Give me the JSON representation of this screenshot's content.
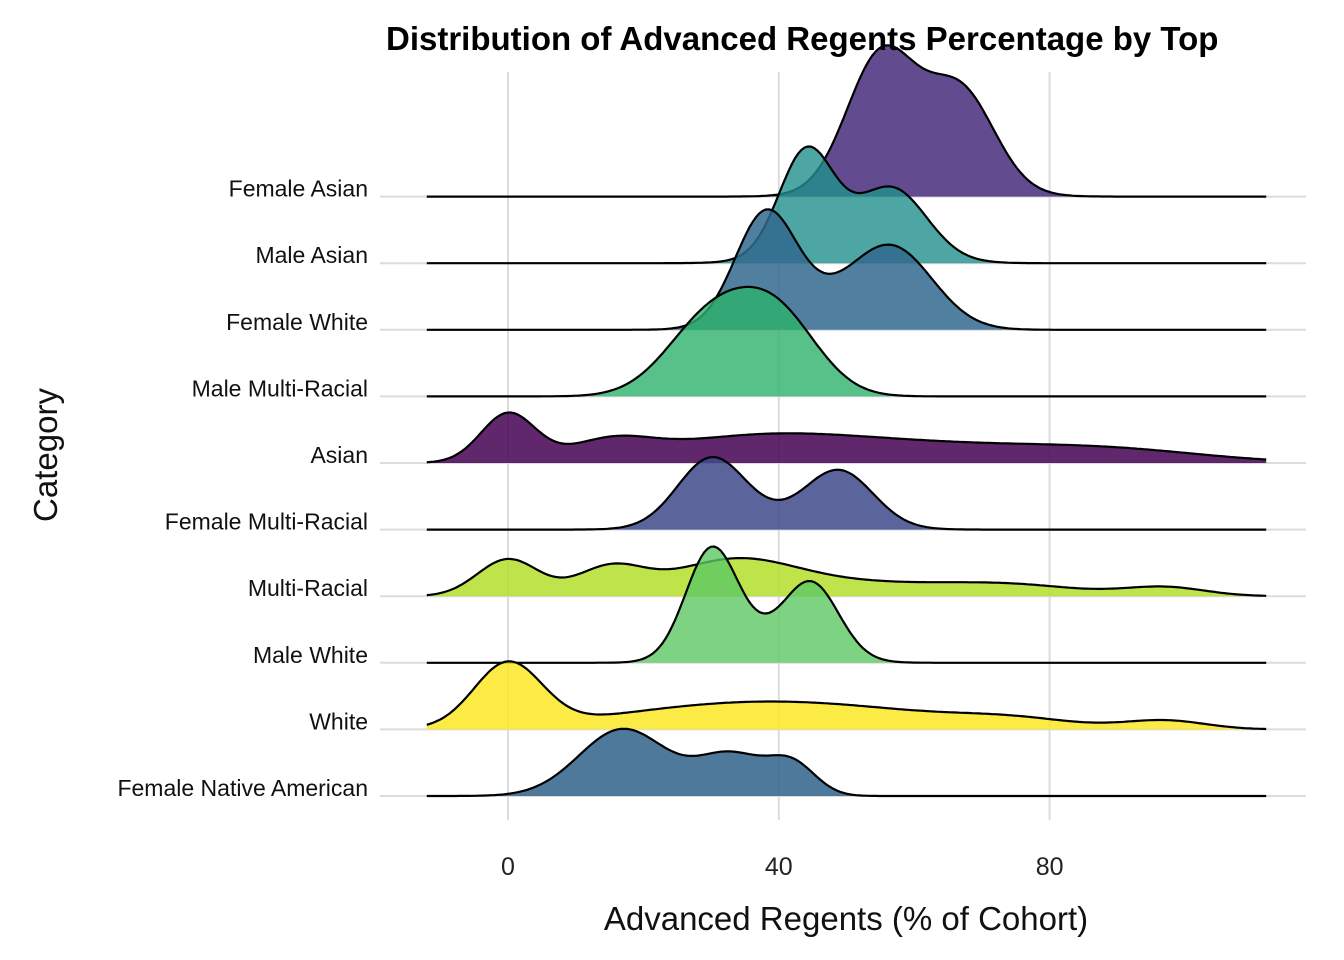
{
  "chart_data": {
    "type": "ridgeline",
    "title": "Distribution of Advanced Regents Percentage by Top",
    "xlabel": "Advanced Regents (% of Cohort)",
    "ylabel": "Category",
    "xlim": [
      -12,
      112
    ],
    "xticks": [
      0,
      40,
      80
    ],
    "grid": true,
    "series": [
      {
        "name": "Female Native American",
        "color": "#3B6A8F",
        "opacity": 0.9,
        "range": [
          -12,
          112
        ],
        "peaks": [
          [
            17,
            6.5,
            1.0
          ],
          [
            33,
            5,
            0.6
          ],
          [
            42,
            3.5,
            0.45
          ]
        ]
      },
      {
        "name": "White",
        "color": "#FDE725",
        "opacity": 0.85,
        "range": [
          -12,
          112
        ],
        "peaks": [
          [
            0,
            5,
            0.95
          ],
          [
            33,
            18,
            0.35
          ],
          [
            55,
            15,
            0.15
          ],
          [
            75,
            9,
            0.12
          ],
          [
            97,
            6,
            0.13
          ]
        ]
      },
      {
        "name": "Male White",
        "color": "#5DC863",
        "opacity": 0.8,
        "range": [
          -12,
          112
        ],
        "peaks": [
          [
            30,
            3.8,
            1.55
          ],
          [
            45,
            4,
            1.0
          ],
          [
            38,
            7,
            0.35
          ]
        ]
      },
      {
        "name": "Multi-Racial",
        "color": "#B4DE2C",
        "opacity": 0.85,
        "range": [
          -12,
          112
        ],
        "peaks": [
          [
            0,
            4.5,
            0.55
          ],
          [
            15,
            5,
            0.4
          ],
          [
            33,
            9,
            0.45
          ],
          [
            50,
            16,
            0.2
          ],
          [
            75,
            10,
            0.13
          ],
          [
            97,
            6,
            0.13
          ]
        ]
      },
      {
        "name": "Female Multi-Racial",
        "color": "#3E4A89",
        "opacity": 0.85,
        "range": [
          -12,
          112
        ],
        "peaks": [
          [
            30,
            5,
            1.0
          ],
          [
            49,
            5,
            0.8
          ],
          [
            40,
            9,
            0.15
          ]
        ]
      },
      {
        "name": "Asian",
        "color": "#440154",
        "opacity": 0.85,
        "range": [
          -12,
          112
        ],
        "peaks": [
          [
            0,
            4,
            0.72
          ],
          [
            15,
            6,
            0.25
          ],
          [
            35,
            15,
            0.3
          ],
          [
            60,
            20,
            0.26
          ],
          [
            90,
            14,
            0.15
          ]
        ]
      },
      {
        "name": "Male Multi-Racial",
        "color": "#2DB26B",
        "opacity": 0.8,
        "range": [
          -12,
          112
        ],
        "peaks": [
          [
            30,
            6.5,
            1.15
          ],
          [
            40,
            6,
            1.1
          ]
        ]
      },
      {
        "name": "Female White",
        "color": "#31688E",
        "opacity": 0.85,
        "range": [
          -12,
          112
        ],
        "peaks": [
          [
            38,
            4.5,
            1.6
          ],
          [
            57,
            6,
            1.1
          ],
          [
            47,
            8,
            0.35
          ]
        ]
      },
      {
        "name": "Male Asian",
        "color": "#21908D",
        "opacity": 0.8,
        "range": [
          -12,
          112
        ],
        "peaks": [
          [
            44,
            4,
            1.5
          ],
          [
            57,
            5,
            0.9
          ],
          [
            51,
            8,
            0.3
          ]
        ]
      },
      {
        "name": "Female Asian",
        "color": "#472D7B",
        "opacity": 0.85,
        "range": [
          -12,
          112
        ],
        "peaks": [
          [
            55,
            5,
            1.85
          ],
          [
            67,
            5,
            1.3
          ],
          [
            61,
            8,
            0.4
          ]
        ]
      }
    ]
  }
}
